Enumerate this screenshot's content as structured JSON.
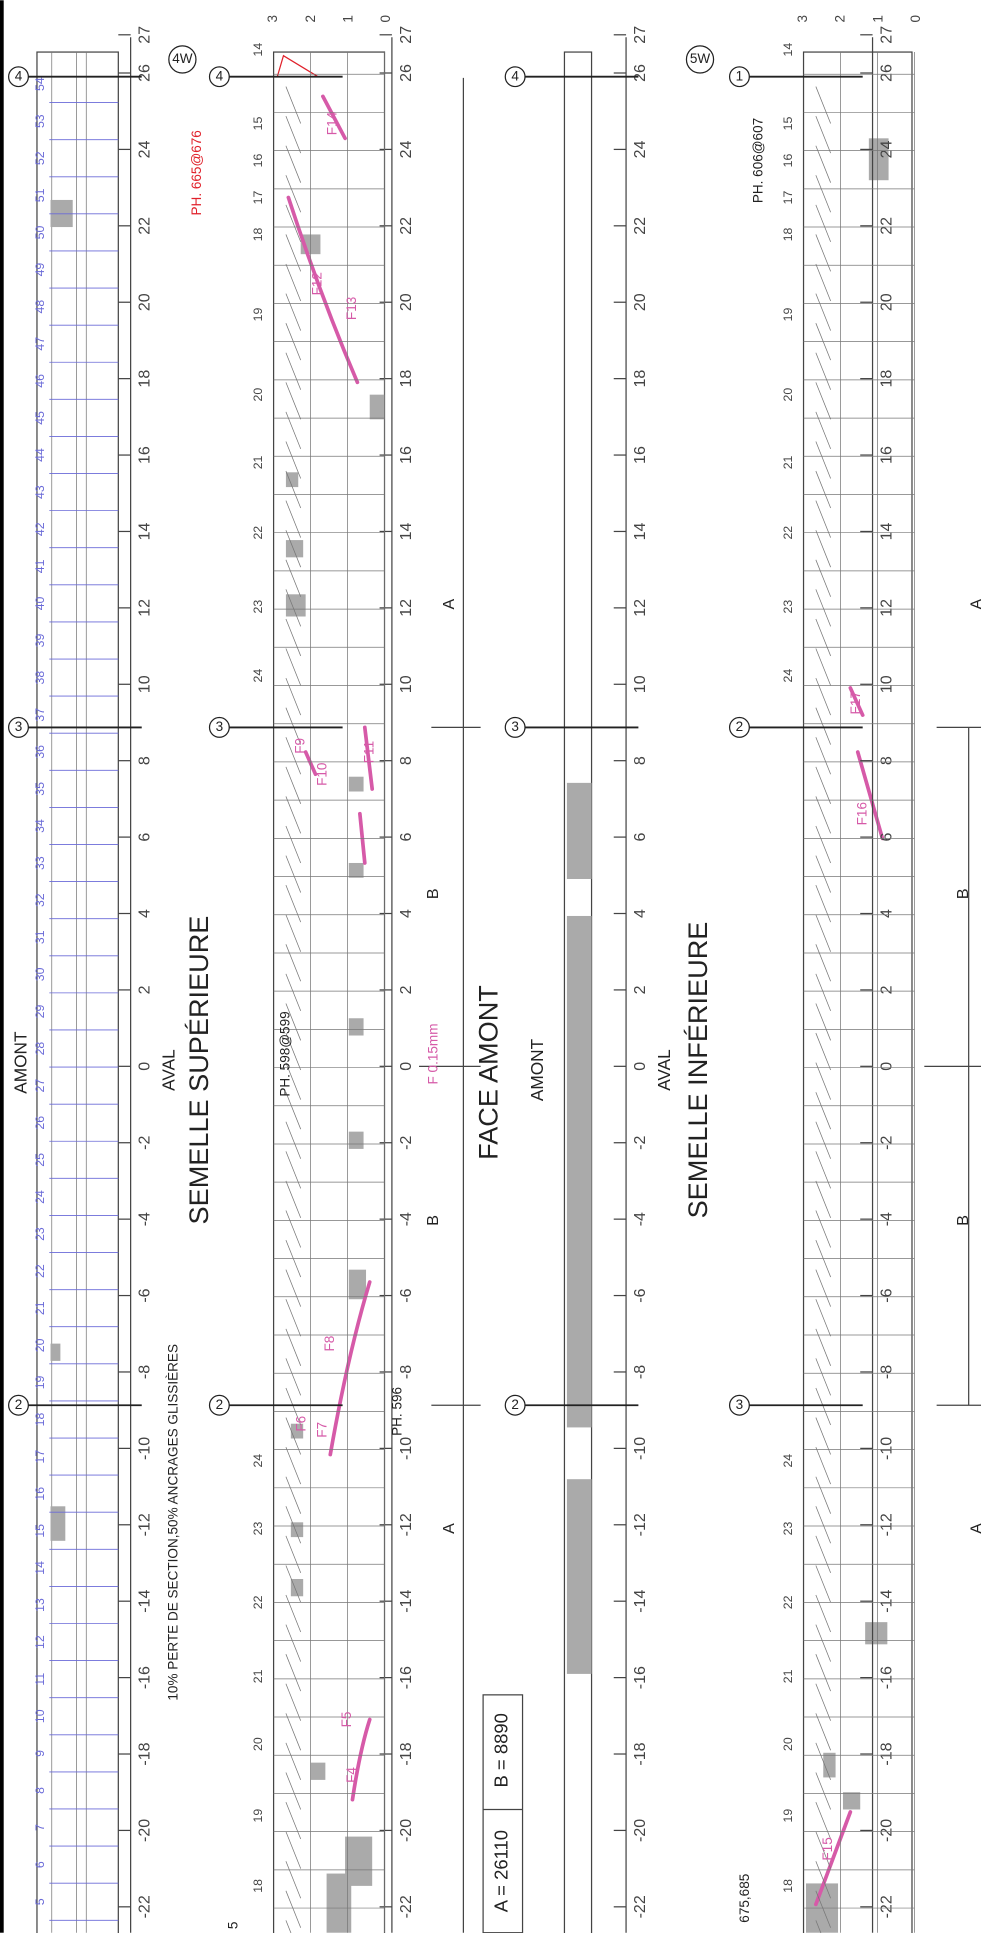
{
  "header": {
    "amont_top": "AMONT",
    "aval_top": "AVAL",
    "title_top": "SEMELLE SUPÉRIEURE",
    "photo_top": "PH. 598@599",
    "note": "10% PERTE DE SECTION,50% ANCRAGES GLISSIÈRES",
    "photo_red": "PH. 665@676",
    "crack_width": "F 0.15mm",
    "photo_596": "PH. 596",
    "face_title": "FACE AMONT",
    "amont_face": "AMONT",
    "aval_bottom": "AVAL",
    "title_bottom": "SEMELLE INFÉRIEURE",
    "photo_bottom": "PH. 606@607",
    "photo_675": "675,685",
    "cut_mark": "5"
  },
  "dimensions": {
    "a": "A = 26110",
    "b": "B = 8890",
    "a_label": "A",
    "b_label": "B"
  },
  "markers": {
    "w4": "4W",
    "w5": "5W",
    "axes_top": [
      "4",
      "3",
      "2"
    ],
    "axes_bottom": [
      "1",
      "2",
      "3"
    ]
  },
  "scale": [
    27,
    26,
    24,
    22,
    20,
    18,
    16,
    14,
    12,
    10,
    8,
    6,
    4,
    2,
    0,
    -2,
    -4,
    -6,
    -8,
    -10,
    -12,
    -14,
    -16,
    -18,
    -20,
    -22
  ],
  "depth": [
    3,
    2,
    1,
    0
  ],
  "stations": [
    54,
    53,
    52,
    51,
    50,
    49,
    48,
    47,
    46,
    45,
    44,
    43,
    42,
    41,
    40,
    39,
    38,
    37,
    36,
    35,
    34,
    33,
    32,
    31,
    30,
    29,
    28,
    27,
    26,
    25,
    24,
    23,
    22,
    21,
    20,
    19,
    18,
    17,
    16,
    15,
    14,
    13,
    12,
    11,
    10,
    9,
    8,
    7,
    6,
    5
  ],
  "rows_upper": [
    14,
    15,
    16,
    17,
    18,
    19,
    20,
    21,
    22,
    23,
    24
  ],
  "rows_lower": [
    24,
    23,
    22,
    21,
    20,
    19,
    18
  ],
  "cracks": [
    "F14",
    "F12",
    "F13",
    "F10",
    "F9",
    "F11",
    "F8",
    "F6",
    "F7",
    "F5",
    "F4",
    "F16",
    "F17",
    "F15"
  ]
}
